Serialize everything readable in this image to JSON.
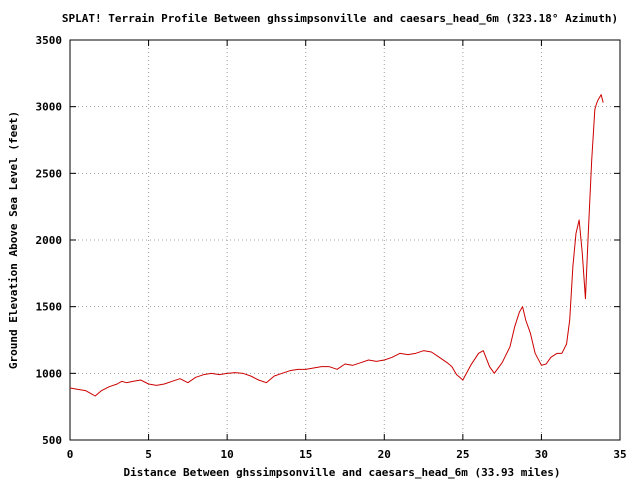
{
  "chart_data": {
    "type": "line",
    "title": "SPLAT! Terrain Profile Between ghssimpsonville and caesars_head_6m (323.18° Azimuth)",
    "xlabel": "Distance Between ghssimpsonville and caesars_head_6m (33.93 miles)",
    "ylabel": "Ground Elevation Above Sea Level (feet)",
    "xlim": [
      0,
      35
    ],
    "ylim": [
      500,
      3500
    ],
    "x_ticks": [
      0,
      5,
      10,
      15,
      20,
      25,
      30,
      35
    ],
    "y_ticks": [
      500,
      1000,
      1500,
      2000,
      2500,
      3000,
      3500
    ],
    "x_tick_labels": [
      "0",
      "5",
      "10",
      "15",
      "20",
      "25",
      "30",
      "35"
    ],
    "y_tick_labels": [
      "500",
      "1000",
      "1500",
      "2000",
      "2500",
      "3000",
      "3500"
    ],
    "grid": true,
    "legend": "none",
    "line_color": "#cc0000",
    "series": [
      {
        "x": [
          0,
          0.5,
          1.0,
          1.3,
          1.6,
          2.0,
          2.5,
          3.0,
          3.3,
          3.6,
          4.0,
          4.5,
          5.0,
          5.5,
          6.0,
          6.5,
          7.0,
          7.5,
          8.0,
          8.5,
          9.0,
          9.5,
          10.0,
          10.5,
          11.0,
          11.5,
          12.0,
          12.5,
          13.0,
          13.5,
          14.0,
          14.5,
          15.0,
          15.5,
          16.0,
          16.5,
          17.0,
          17.5,
          18.0,
          18.5,
          19.0,
          19.5,
          20.0,
          20.5,
          21.0,
          21.5,
          22.0,
          22.5,
          23.0,
          23.5,
          24.0,
          24.3,
          24.6,
          25.0,
          25.5,
          26.0,
          26.3,
          26.7,
          27.0,
          27.5,
          28.0,
          28.3,
          28.6,
          28.8,
          29.0,
          29.3,
          29.6,
          30.0,
          30.3,
          30.6,
          31.0,
          31.3,
          31.6,
          31.8,
          32.0,
          32.2,
          32.4,
          32.6,
          32.8,
          33.0,
          33.2,
          33.4,
          33.5,
          33.6,
          33.7,
          33.8,
          33.93
        ],
        "y": [
          890,
          880,
          870,
          850,
          830,
          870,
          900,
          920,
          940,
          930,
          940,
          950,
          920,
          910,
          920,
          940,
          960,
          930,
          970,
          990,
          1000,
          990,
          1000,
          1005,
          1000,
          980,
          950,
          930,
          980,
          1000,
          1020,
          1030,
          1030,
          1040,
          1050,
          1050,
          1030,
          1070,
          1060,
          1080,
          1100,
          1090,
          1100,
          1120,
          1150,
          1140,
          1150,
          1170,
          1160,
          1120,
          1080,
          1050,
          990,
          950,
          1060,
          1150,
          1170,
          1050,
          1000,
          1080,
          1200,
          1350,
          1460,
          1500,
          1400,
          1300,
          1150,
          1060,
          1070,
          1120,
          1150,
          1150,
          1220,
          1400,
          1800,
          2050,
          2150,
          1900,
          1560,
          2100,
          2600,
          2980,
          3020,
          3050,
          3070,
          3090,
          3030
        ]
      }
    ]
  }
}
